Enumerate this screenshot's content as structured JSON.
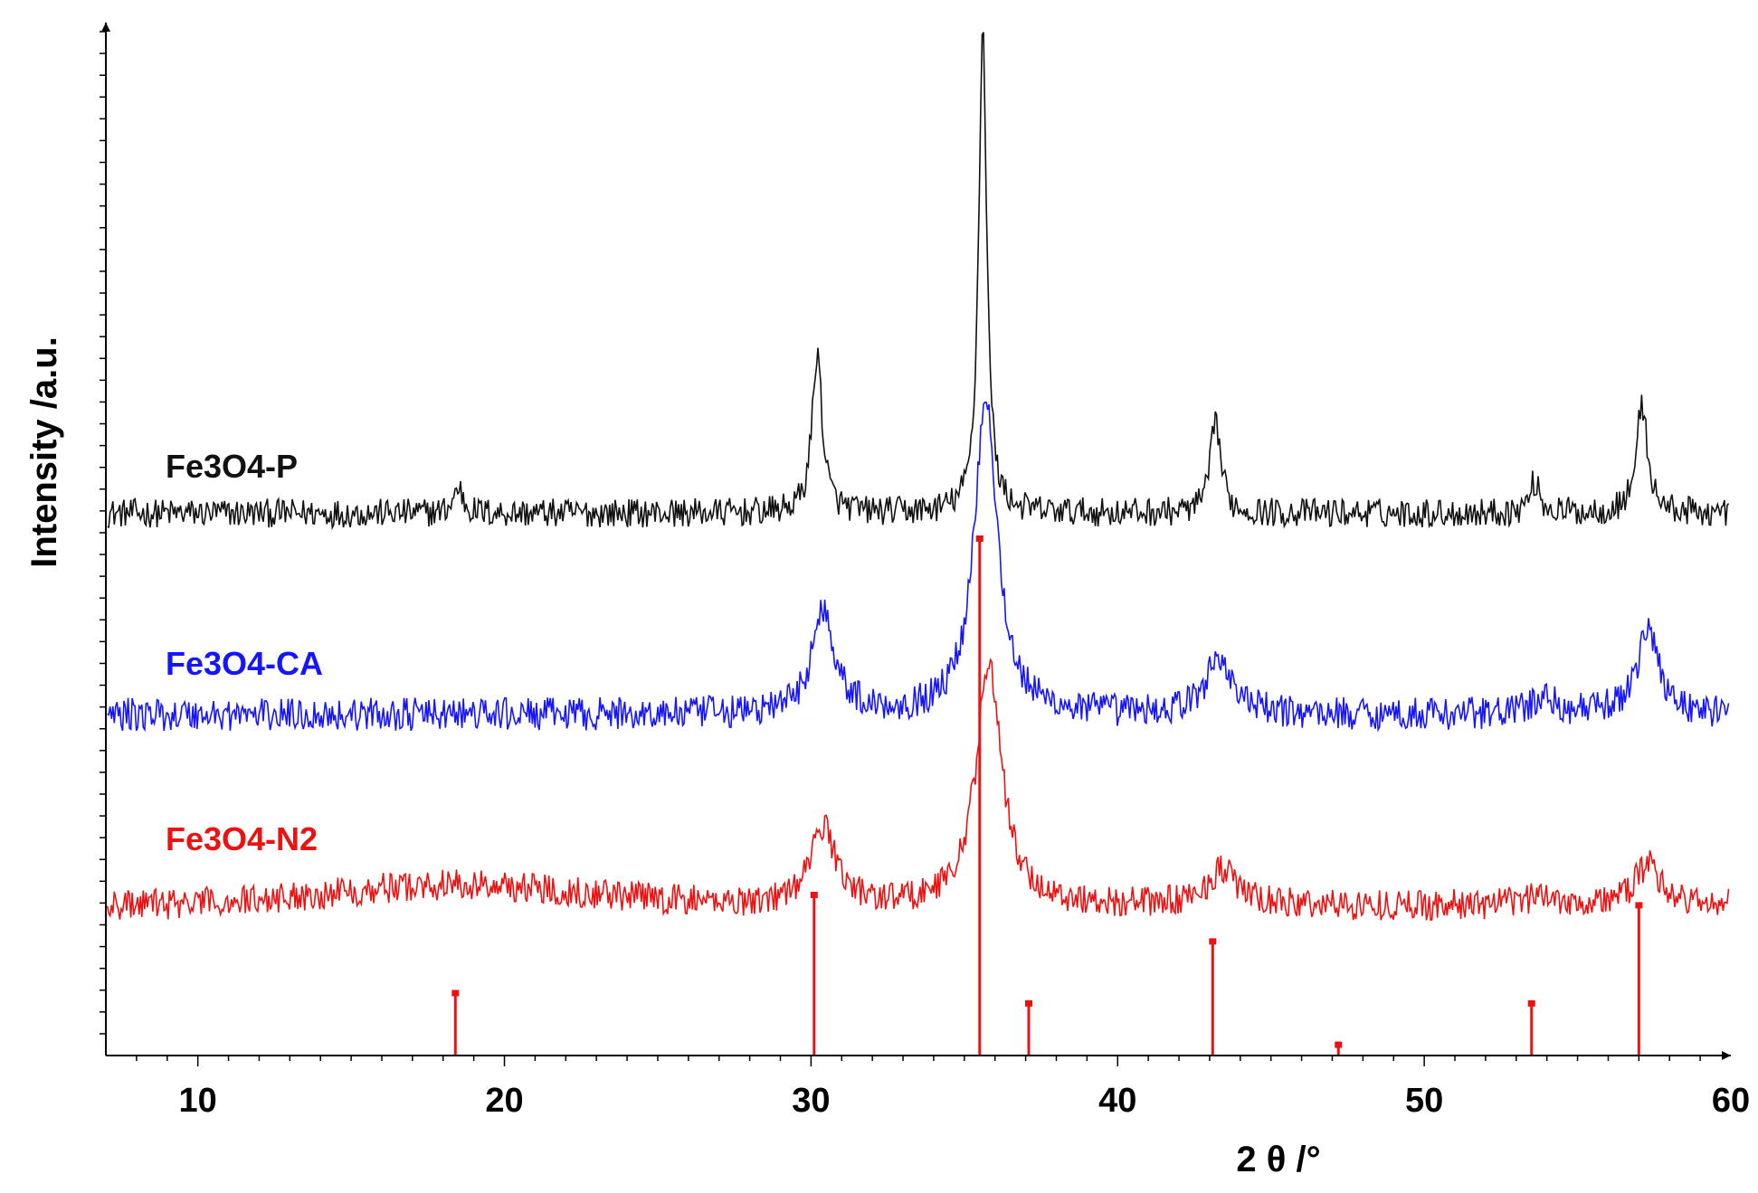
{
  "chart_data": {
    "type": "line",
    "title": "",
    "xlabel": "2 θ /°",
    "ylabel": "Intensity /a.u.",
    "xlim": [
      7,
      60
    ],
    "x_ticks": [
      10,
      20,
      30,
      40,
      50,
      60
    ],
    "y_ticks_labeled": false,
    "grid": false,
    "legend": "inline-left",
    "colors": {
      "black": "#111111",
      "blue": "#1515ff",
      "red": "#ee1111"
    },
    "series": [
      {
        "name": "Fe3O4-P",
        "color": "#111111",
        "baseline": 0.525,
        "noise": 0.014,
        "peaks": [
          {
            "x": 18.5,
            "h": 0.025,
            "w": 0.18
          },
          {
            "x": 30.2,
            "h": 0.155,
            "w": 0.2
          },
          {
            "x": 35.6,
            "h": 0.47,
            "w": 0.16
          },
          {
            "x": 43.2,
            "h": 0.09,
            "w": 0.2
          },
          {
            "x": 53.6,
            "h": 0.03,
            "w": 0.2
          },
          {
            "x": 57.1,
            "h": 0.105,
            "w": 0.22
          }
        ]
      },
      {
        "name": "Fe3O4-CA",
        "color": "#1515ff",
        "baseline": 0.33,
        "noise": 0.016,
        "peaks": [
          {
            "x": 30.4,
            "h": 0.1,
            "w": 0.45
          },
          {
            "x": 35.7,
            "h": 0.31,
            "w": 0.45
          },
          {
            "x": 43.3,
            "h": 0.055,
            "w": 0.5
          },
          {
            "x": 53.9,
            "h": 0.015,
            "w": 0.5
          },
          {
            "x": 57.3,
            "h": 0.08,
            "w": 0.45
          }
        ]
      },
      {
        "name": "Fe3O4-N2",
        "color": "#ee1111",
        "baseline": 0.145,
        "noise": 0.015,
        "hump": {
          "x": 18.5,
          "h": 0.02,
          "w": 6
        },
        "peaks": [
          {
            "x": 30.4,
            "h": 0.075,
            "w": 0.5
          },
          {
            "x": 35.8,
            "h": 0.235,
            "w": 0.5
          },
          {
            "x": 43.4,
            "h": 0.035,
            "w": 0.55
          },
          {
            "x": 53.9,
            "h": 0.01,
            "w": 0.6
          },
          {
            "x": 57.3,
            "h": 0.04,
            "w": 0.5
          }
        ]
      }
    ],
    "reference_lines": {
      "color": "#ee1111",
      "x": [
        18.4,
        30.1,
        35.5,
        37.1,
        43.1,
        47.2,
        53.5,
        57.0
      ],
      "values": [
        0.06,
        0.155,
        0.5,
        0.05,
        0.11,
        0.01,
        0.05,
        0.145
      ]
    }
  }
}
